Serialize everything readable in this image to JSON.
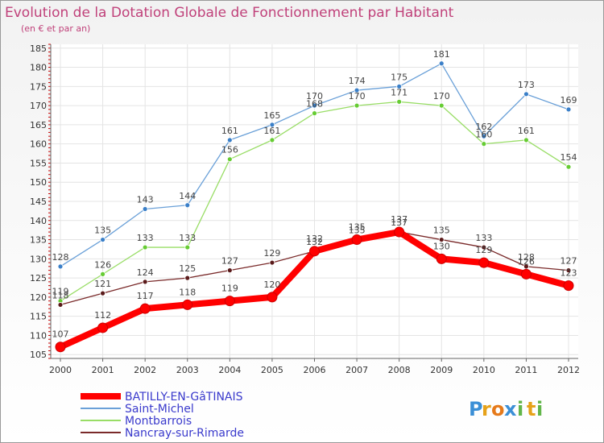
{
  "chart_data": {
    "type": "line",
    "title": "Evolution de la Dotation Globale de Fonctionnement par Habitant",
    "subtitle": "(en € et par an)",
    "xlabel": "",
    "ylabel": "",
    "ylim": [
      104,
      186
    ],
    "y_ticks": [
      105,
      110,
      115,
      120,
      125,
      130,
      135,
      140,
      145,
      150,
      155,
      160,
      165,
      170,
      175,
      180,
      185
    ],
    "categories": [
      "2000",
      "2001",
      "2002",
      "2003",
      "2004",
      "2005",
      "2006",
      "2007",
      "2008",
      "2009",
      "2010",
      "2011",
      "2012"
    ],
    "grid": true,
    "legend_position": "bottom-left",
    "series": [
      {
        "name": "BATILLY-EN-GâTINAIS",
        "color": "#ff0000",
        "values": [
          107,
          112,
          117,
          118,
          119,
          120,
          132,
          135,
          137,
          130,
          129,
          126,
          123
        ]
      },
      {
        "name": "Saint-Michel",
        "color": "#6aa0d8",
        "values": [
          128,
          135,
          143,
          144,
          161,
          165,
          170,
          174,
          175,
          181,
          162,
          173,
          169
        ]
      },
      {
        "name": "Montbarrois",
        "color": "#99dd66",
        "values": [
          119,
          126,
          133,
          133,
          156,
          161,
          168,
          170,
          171,
          170,
          160,
          161,
          154
        ]
      },
      {
        "name": "Nancray-sur-Rimarde",
        "color": "#7a2a2a",
        "values": [
          118,
          121,
          124,
          125,
          127,
          129,
          132,
          135,
          137,
          135,
          133,
          128,
          127
        ]
      }
    ]
  },
  "brand": {
    "logo_text": "Proxiti",
    "letters": [
      "P",
      "r",
      "o",
      "x",
      "i",
      "t",
      "i"
    ]
  }
}
